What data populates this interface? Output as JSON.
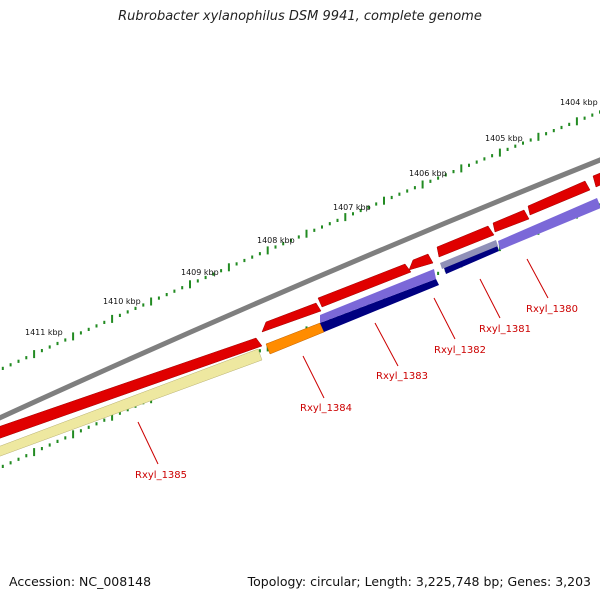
{
  "title": "Rubrobacter xylanophilus DSM 9941, complete genome",
  "footer": {
    "accession": "Accession: NC_008148",
    "stats": "Topology: circular; Length: 3,225,748 bp; Genes: 3,203"
  },
  "colors": {
    "backbone": "#7f7f7f",
    "ruler_tick": "#228b22",
    "cds_forward": "#e00000",
    "cds_reverse_purple": "#7b68d8",
    "cds_reverse_navy": "#000080",
    "cds_orange": "#ff8c00",
    "cds_pale_yellow": "#eee8a0",
    "label_text": "#cc0000"
  },
  "kbp_labels": [
    "1404 kbp",
    "1405 kbp",
    "1406 kbp",
    "1407 kbp",
    "1408 kbp",
    "1409 kbp",
    "1410 kbp",
    "1411 kbp"
  ],
  "genes": [
    "Rxyl_1380",
    "Rxyl_1381",
    "Rxyl_1382",
    "Rxyl_1383",
    "Rxyl_1384",
    "Rxyl_1385"
  ]
}
